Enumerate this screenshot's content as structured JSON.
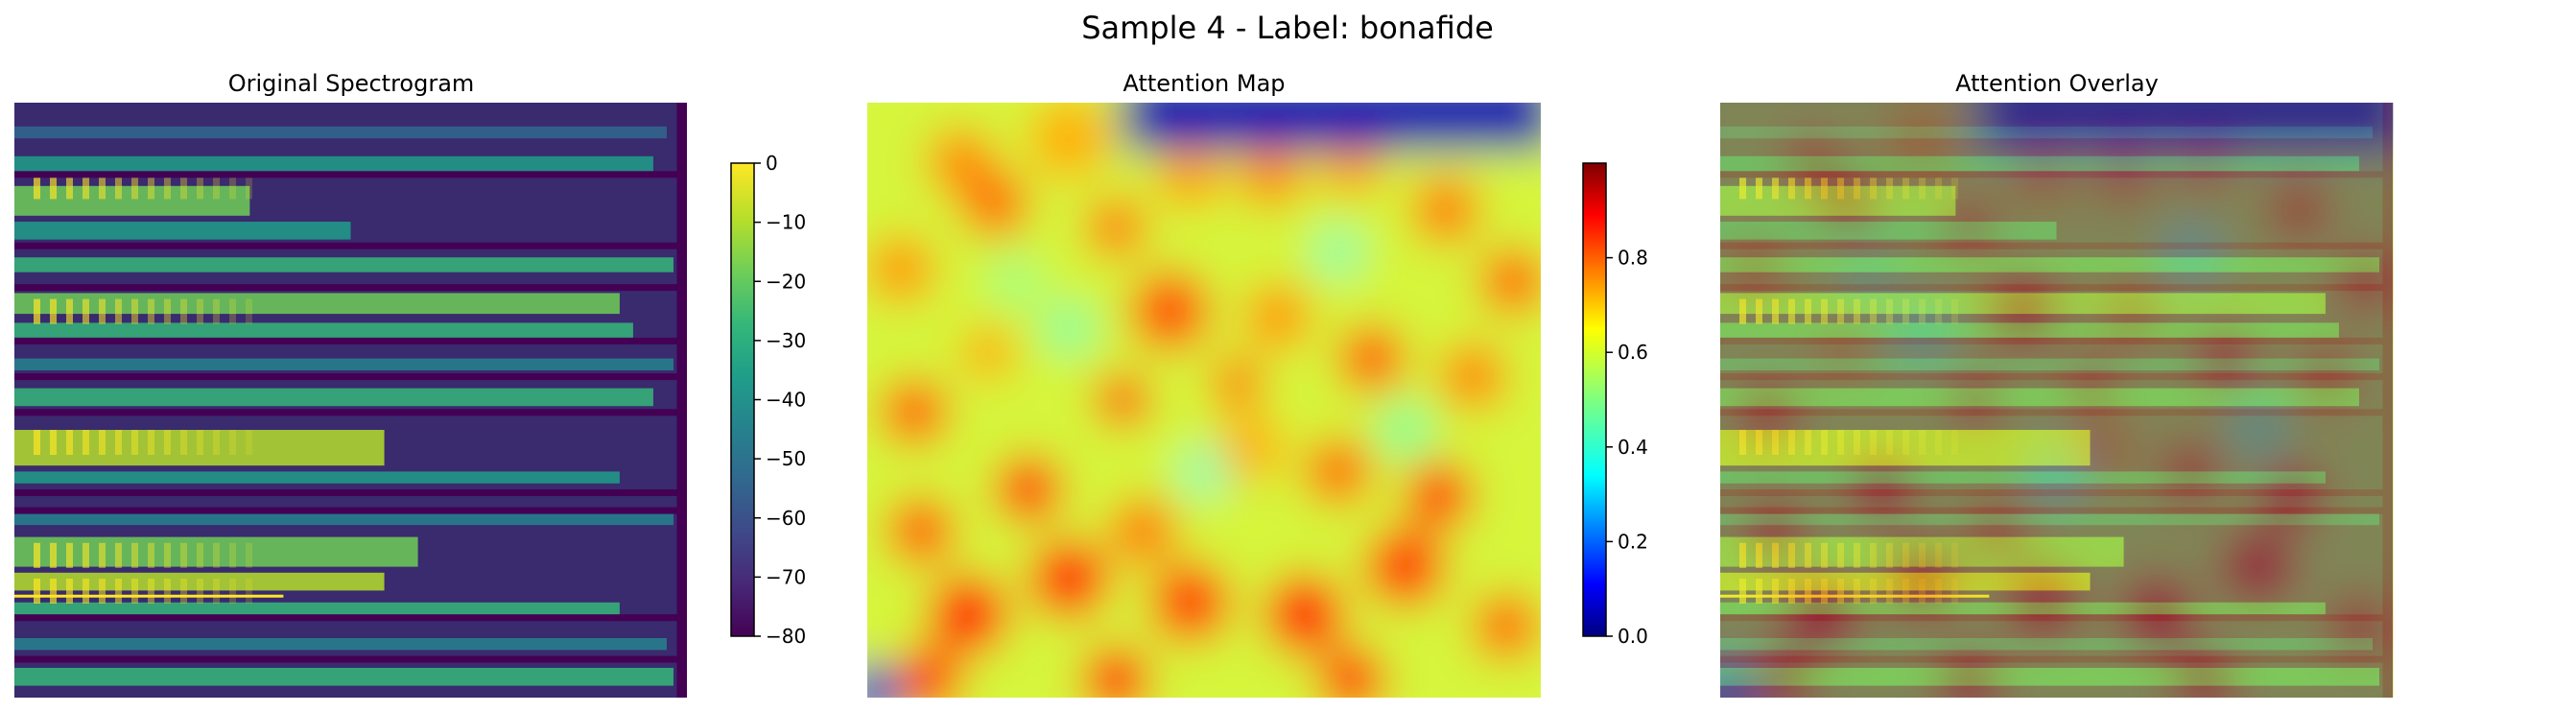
{
  "figure": {
    "suptitle": "Sample 4 - Label: bonafide"
  },
  "chart_data": [
    {
      "type": "heatmap",
      "title": "Original Spectrogram",
      "colormap": "viridis",
      "axes": "off",
      "colorbar": {
        "range": [
          -80,
          0
        ],
        "ticks": [
          0,
          -10,
          -20,
          -30,
          -40,
          -50,
          -60,
          -70,
          -80
        ],
        "tick_labels": [
          "0",
          "−10",
          "−20",
          "−30",
          "−40",
          "−50",
          "−60",
          "−70",
          "−80"
        ]
      }
    },
    {
      "type": "heatmap",
      "title": "Attention Map",
      "colormap": "jet",
      "axes": "off",
      "value_range": [
        0,
        1
      ],
      "colorbar": {
        "range": [
          0,
          1
        ],
        "ticks": [
          0.0,
          0.2,
          0.4,
          0.6,
          0.8
        ],
        "tick_labels": [
          "0.0",
          "0.2",
          "0.4",
          "0.6",
          "0.8"
        ]
      }
    },
    {
      "type": "heatmap",
      "title": "Attention Overlay",
      "colormap": "viridis + jet overlay",
      "axes": "off"
    }
  ],
  "colors": {
    "viridis": [
      "#440154",
      "#482878",
      "#3e4989",
      "#31688e",
      "#26828e",
      "#1f9e89",
      "#35b779",
      "#6ece58",
      "#b5de2b",
      "#fde725"
    ],
    "jet": [
      "#00007f",
      "#0000ff",
      "#007fff",
      "#00ffff",
      "#7fff7f",
      "#ffff00",
      "#ff7f00",
      "#ff0000",
      "#7f0000"
    ]
  }
}
